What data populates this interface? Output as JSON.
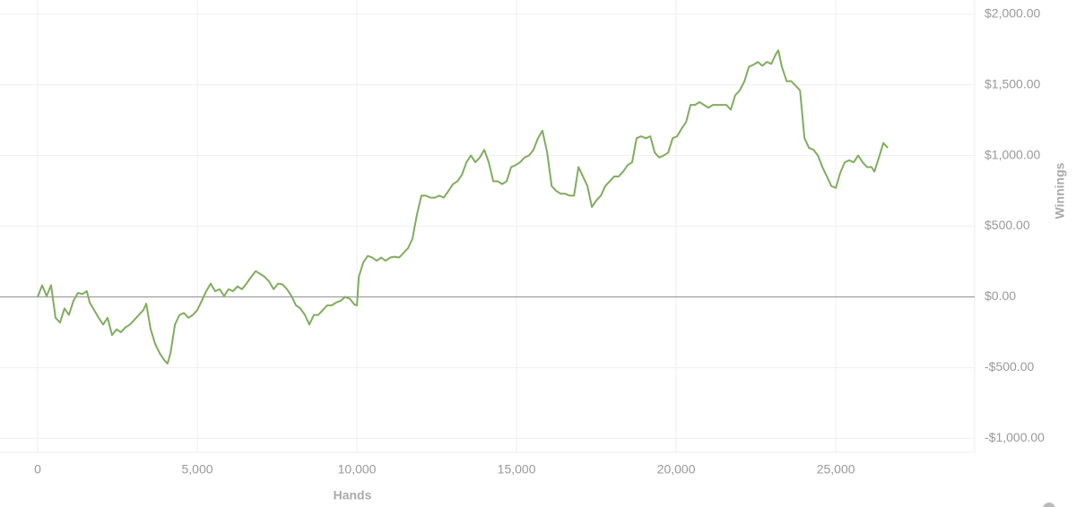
{
  "chart_data": {
    "type": "line",
    "x_label": "Hands",
    "y_label": "Winnings",
    "color": "#80ad5e",
    "grid": true,
    "xlim": [
      -1180,
      29350
    ],
    "ylim": [
      -1100,
      2100
    ],
    "xticks": [
      0,
      {
        "value": 5000,
        "label": "5,000"
      },
      {
        "value": 10000,
        "label": "10,000"
      },
      {
        "value": 15000,
        "label": "15,000"
      },
      {
        "value": 20000,
        "label": "20,000"
      },
      {
        "value": 25000,
        "label": "25,000"
      }
    ],
    "yticks": [
      {
        "value": -1000,
        "label": "-$1,000.00"
      },
      {
        "value": -500,
        "label": "-$500.00"
      },
      {
        "value": 0,
        "label": "$0.00"
      },
      {
        "value": 500,
        "label": "$500.00"
      },
      {
        "value": 1000,
        "label": "$1,000.00"
      },
      {
        "value": 1500,
        "label": "$1,500.00"
      },
      {
        "value": 2000,
        "label": "$2,000.00"
      }
    ],
    "x": [
      0,
      140,
      280,
      420,
      560,
      700,
      840,
      980,
      1120,
      1260,
      1400,
      1540,
      1630,
      1770,
      1910,
      2050,
      2190,
      2330,
      2470,
      2610,
      2750,
      2890,
      3030,
      3170,
      3310,
      3400,
      3540,
      3680,
      3820,
      3960,
      4070,
      4160,
      4300,
      4440,
      4580,
      4720,
      4860,
      5000,
      5140,
      5280,
      5420,
      5560,
      5700,
      5840,
      5980,
      6120,
      6260,
      6400,
      6540,
      6690,
      6830,
      6970,
      7110,
      7250,
      7390,
      7530,
      7670,
      7810,
      7950,
      8090,
      8230,
      8370,
      8510,
      8650,
      8790,
      8930,
      9070,
      9210,
      9350,
      9490,
      9630,
      9780,
      9920,
      10000,
      10060,
      10200,
      10340,
      10480,
      10620,
      10760,
      10900,
      11040,
      11180,
      11320,
      11460,
      11600,
      11740,
      11880,
      12020,
      12160,
      12300,
      12440,
      12580,
      12720,
      12870,
      13010,
      13150,
      13290,
      13430,
      13570,
      13710,
      13850,
      13990,
      14130,
      14270,
      14410,
      14550,
      14690,
      14830,
      14970,
      15110,
      15250,
      15390,
      15530,
      15670,
      15810,
      15960,
      16100,
      16240,
      16380,
      16520,
      16660,
      16800,
      16940,
      17080,
      17220,
      17360,
      17500,
      17640,
      17780,
      17920,
      18060,
      18200,
      18340,
      18480,
      18620,
      18760,
      18900,
      19050,
      19190,
      19330,
      19470,
      19610,
      19750,
      19890,
      20030,
      20170,
      20310,
      20450,
      20590,
      20730,
      20870,
      21010,
      21150,
      21290,
      21430,
      21570,
      21710,
      21850,
      21990,
      22140,
      22280,
      22420,
      22560,
      22700,
      22840,
      22980,
      23120,
      23200,
      23310,
      23460,
      23600,
      23740,
      23880,
      24020,
      24160,
      24300,
      24440,
      24580,
      24720,
      24860,
      25000,
      25140,
      25280,
      25420,
      25560,
      25700,
      25840,
      25980,
      26120,
      26210,
      26350,
      26490,
      26630
    ],
    "values": [
      0,
      82,
      6,
      82,
      -148,
      -182,
      -82,
      -128,
      -28,
      28,
      20,
      40,
      -40,
      -94,
      -148,
      -196,
      -148,
      -270,
      -230,
      -250,
      -216,
      -196,
      -162,
      -128,
      -94,
      -48,
      -230,
      -332,
      -398,
      -446,
      -472,
      -398,
      -196,
      -128,
      -114,
      -148,
      -128,
      -94,
      -28,
      40,
      94,
      40,
      54,
      6,
      54,
      40,
      74,
      54,
      94,
      142,
      182,
      162,
      142,
      108,
      54,
      94,
      88,
      54,
      6,
      -60,
      -82,
      -128,
      -196,
      -128,
      -128,
      -94,
      -60,
      -60,
      -40,
      -28,
      0,
      -14,
      -54,
      -60,
      142,
      244,
      290,
      278,
      256,
      278,
      256,
      278,
      284,
      278,
      310,
      344,
      412,
      582,
      716,
      716,
      702,
      702,
      716,
      702,
      750,
      798,
      818,
      864,
      952,
      1000,
      952,
      986,
      1040,
      952,
      818,
      818,
      798,
      818,
      918,
      932,
      952,
      986,
      1000,
      1040,
      1122,
      1176,
      1020,
      784,
      750,
      730,
      730,
      716,
      716,
      918,
      852,
      784,
      636,
      682,
      716,
      784,
      818,
      852,
      852,
      886,
      932,
      952,
      1122,
      1136,
      1122,
      1136,
      1020,
      986,
      1000,
      1020,
      1122,
      1136,
      1190,
      1236,
      1358,
      1358,
      1378,
      1358,
      1338,
      1358,
      1358,
      1358,
      1358,
      1324,
      1426,
      1460,
      1526,
      1628,
      1642,
      1662,
      1634,
      1662,
      1648,
      1716,
      1744,
      1628,
      1526,
      1526,
      1494,
      1460,
      1122,
      1054,
      1040,
      1000,
      918,
      852,
      784,
      770,
      878,
      952,
      966,
      952,
      1000,
      952,
      918,
      918,
      886,
      986,
      1088,
      1054
    ]
  }
}
